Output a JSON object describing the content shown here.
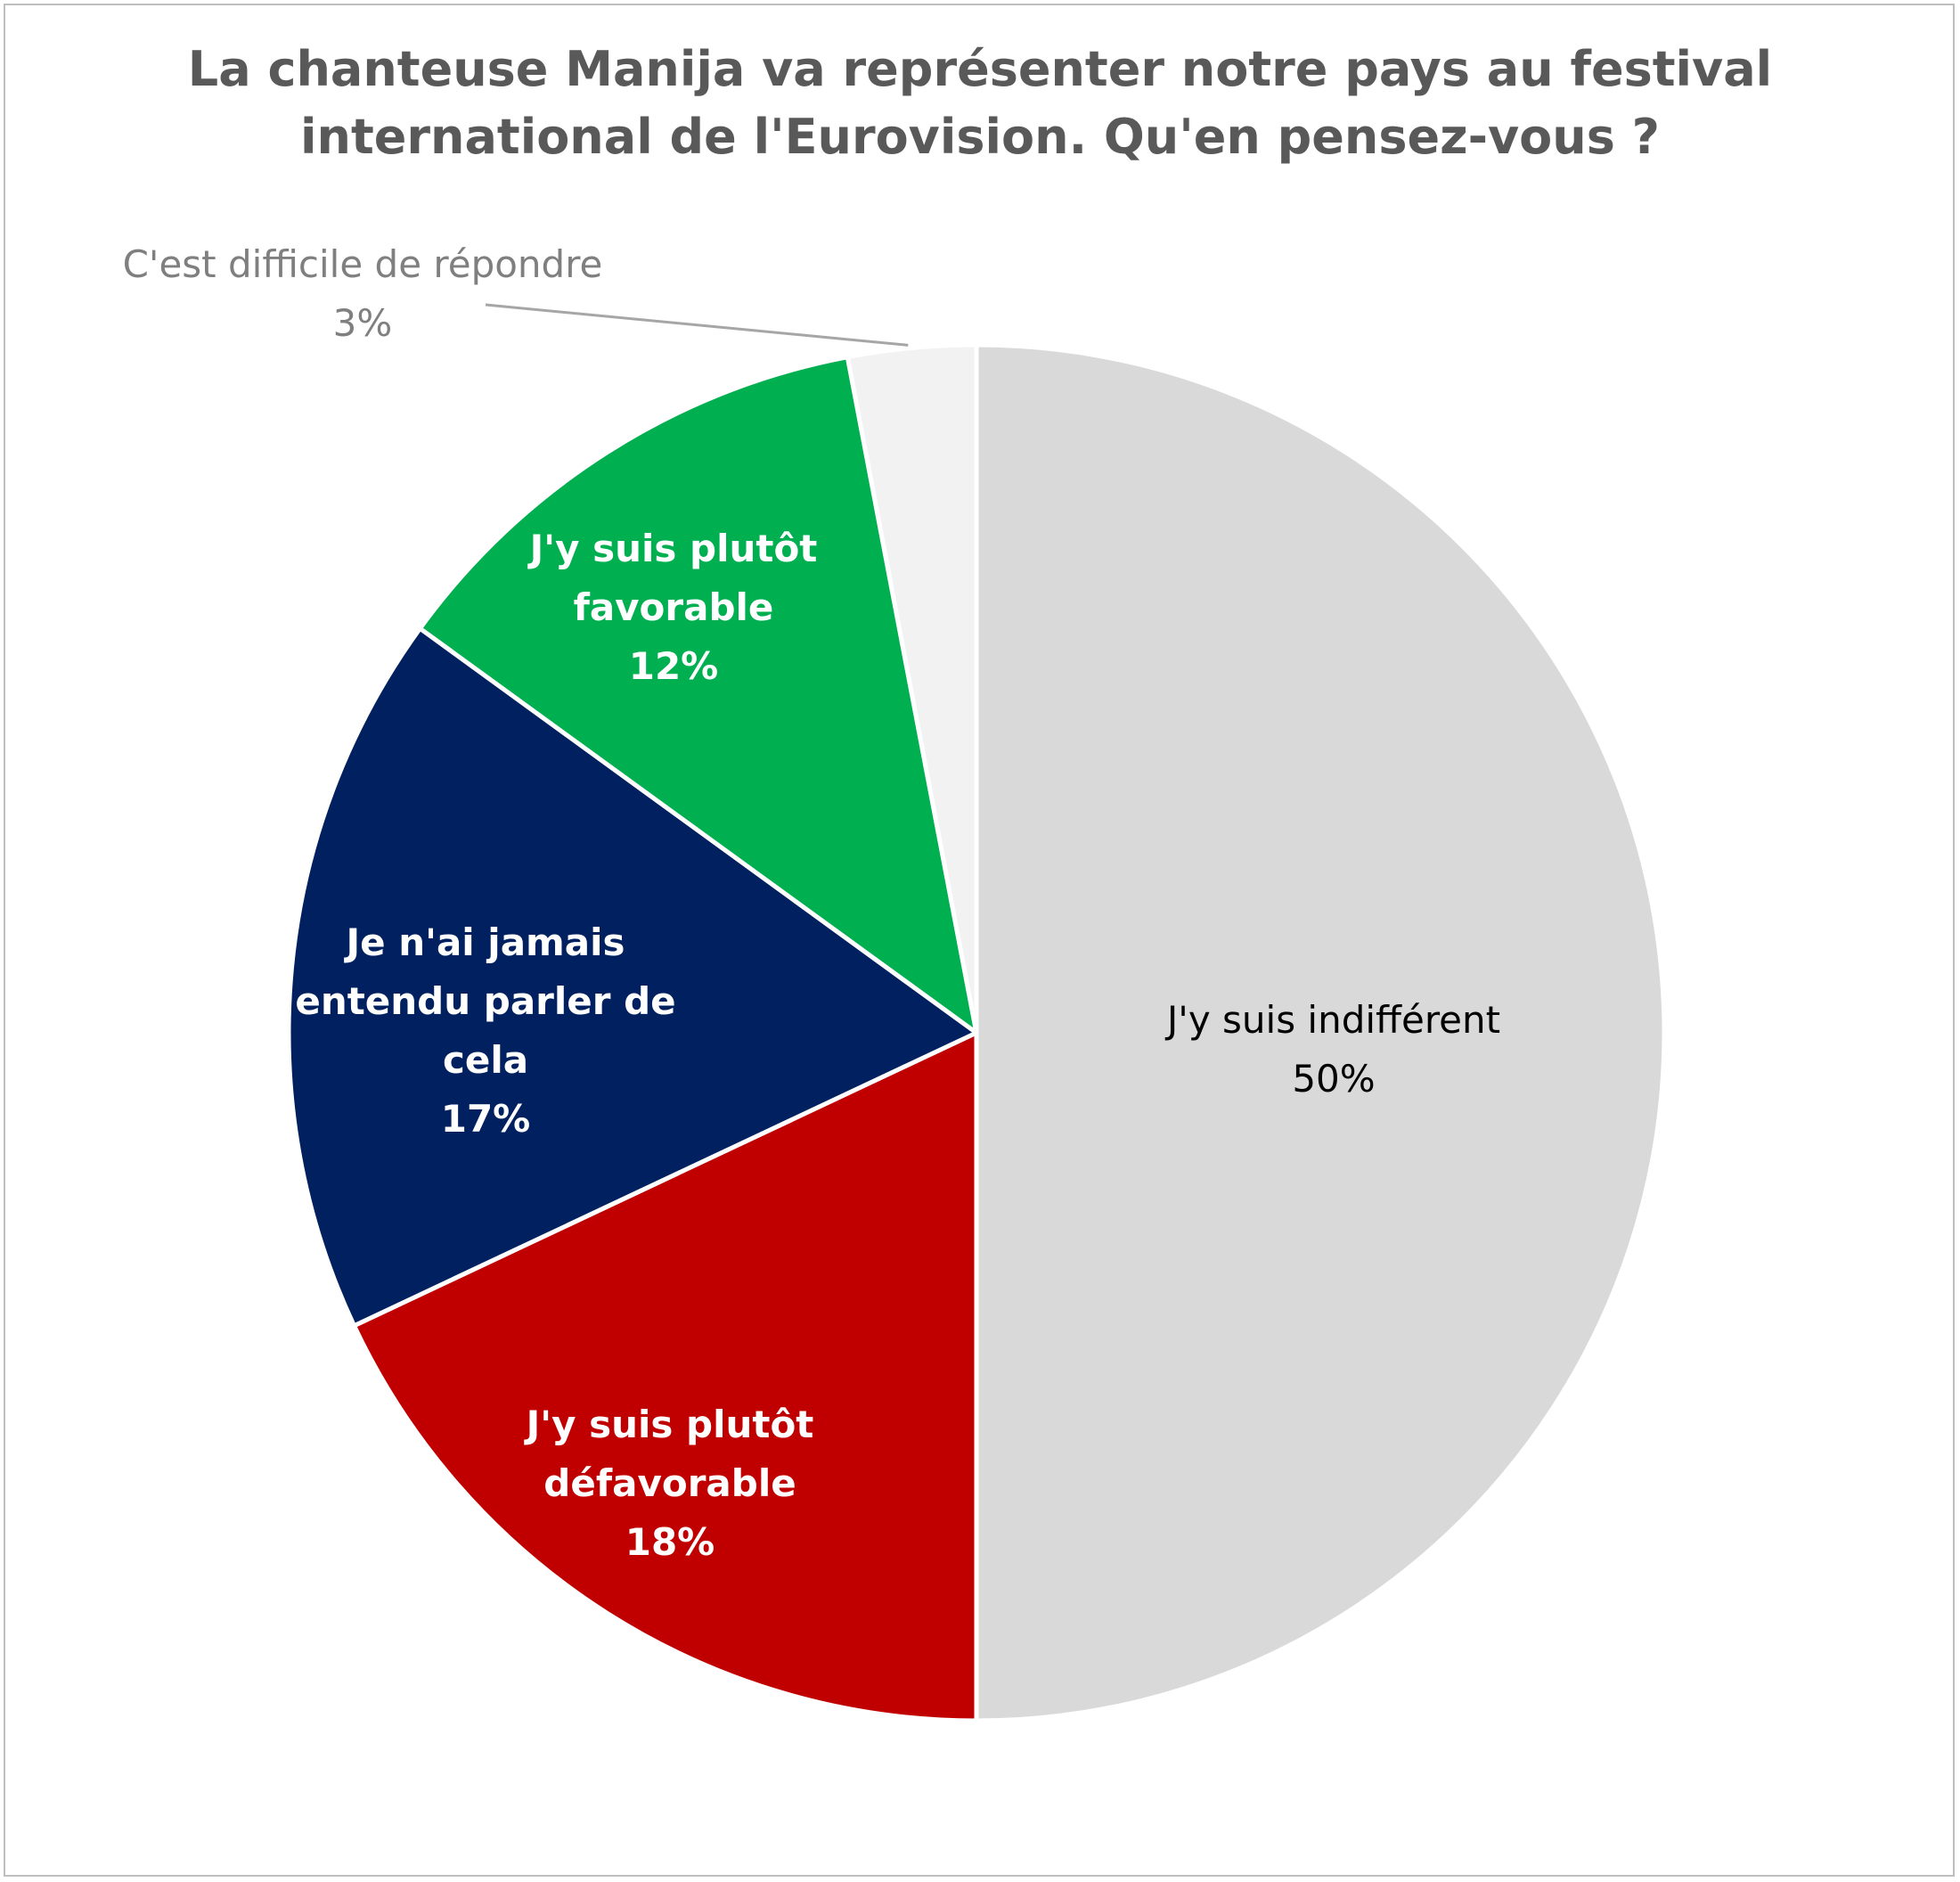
{
  "chart_data": {
    "type": "pie",
    "title_lines": [
      "La chanteuse Manija va représenter notre pays au festival",
      "international de l'Eurovision. Qu'en pensez-vous ?"
    ],
    "start_angle_deg": 0,
    "direction": "clockwise",
    "slices": [
      {
        "label_lines": [
          "J'y suis indifférent"
        ],
        "value_label": "50%",
        "value": 50,
        "color": "#d9d9d9",
        "label_color": "#000000"
      },
      {
        "label_lines": [
          "J'y suis plutôt",
          "défavorable"
        ],
        "value_label": "18%",
        "value": 18,
        "color": "#c00000",
        "label_color": "#ffffff"
      },
      {
        "label_lines": [
          "Je n'ai jamais",
          "entendu parler de",
          "cela"
        ],
        "value_label": "17%",
        "value": 17,
        "color": "#002060",
        "label_color": "#ffffff"
      },
      {
        "label_lines": [
          "J'y suis plutôt",
          "favorable"
        ],
        "value_label": "12%",
        "value": 12,
        "color": "#00b050",
        "label_color": "#ffffff"
      },
      {
        "label_lines": [
          "C'est difficile de répondre"
        ],
        "value_label": "3%",
        "value": 3,
        "color": "#f2f2f2",
        "label_color": "#7f7f7f"
      }
    ]
  }
}
